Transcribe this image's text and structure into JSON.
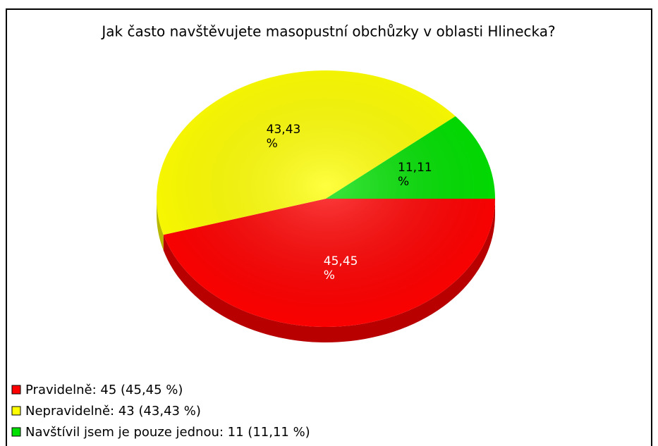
{
  "chart_data": {
    "type": "pie",
    "title": "Jak často navštěvujete masopustní obchůzky v oblasti Hlinecka?",
    "categories": [
      "Pravidelně: 45 (45,45 %)",
      "Nepravidelně: 43 (43,43 %)",
      "Navštívil jsem je pouze jednou: 11 (11,11 %)"
    ],
    "values": [
      45.45,
      43.43,
      11.11
    ],
    "value_labels": [
      "45,45 %",
      "43,43 %",
      "11,11 %"
    ],
    "colors": [
      "#ff0000",
      "#ffff00",
      "#00e000"
    ],
    "label_colors": [
      "#ffffff",
      "#000000",
      "#000000"
    ],
    "legend": "bottom-left"
  }
}
